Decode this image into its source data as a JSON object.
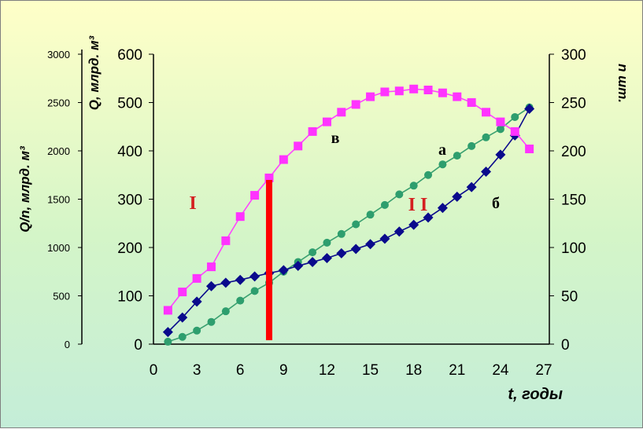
{
  "chart_data": {
    "type": "line",
    "xlabel": "t, годы",
    "x_ticks": [
      "0",
      "3",
      "6",
      "9",
      "12",
      "15",
      "18",
      "21",
      "24",
      "27"
    ],
    "xlim": [
      0,
      27
    ],
    "axes": {
      "q_per_n": {
        "label": "Q/n, млрд. м³",
        "range": [
          0,
          3000
        ],
        "ticks": [
          "0",
          "500",
          "1000",
          "1500",
          "2000",
          "2500",
          "3000"
        ]
      },
      "q": {
        "label": "Q, млрд. м³",
        "range": [
          0,
          600
        ],
        "ticks": [
          "0",
          "100",
          "200",
          "300",
          "400",
          "500",
          "600"
        ]
      },
      "n": {
        "label": "n шт.",
        "range": [
          0,
          300
        ],
        "ticks": [
          "0",
          "50",
          "100",
          "150",
          "200",
          "250",
          "300"
        ]
      }
    },
    "x": [
      1,
      2,
      3,
      4,
      5,
      6,
      7,
      8,
      9,
      10,
      11,
      12,
      13,
      14,
      15,
      16,
      17,
      18,
      19,
      20,
      21,
      22,
      23,
      24,
      25,
      26
    ],
    "series": [
      {
        "name": "а",
        "axis": "q",
        "marker": "circle",
        "color": "#2e9e6e",
        "line_color": "#3aa070",
        "values": [
          5,
          15,
          28,
          46,
          68,
          90,
          110,
          127,
          150,
          170,
          190,
          210,
          228,
          248,
          268,
          288,
          310,
          328,
          350,
          372,
          390,
          410,
          428,
          445,
          470,
          490
        ]
      },
      {
        "name": "б",
        "axis": "q",
        "marker": "diamond",
        "color": "#0a0a8c",
        "line_color": "#0a0a8c",
        "values": [
          25,
          55,
          88,
          120,
          127,
          133,
          140,
          147,
          153,
          162,
          170,
          178,
          188,
          197,
          207,
          218,
          233,
          247,
          262,
          282,
          305,
          325,
          357,
          392,
          432,
          487
        ]
      },
      {
        "name": "в",
        "axis": "q_per_n",
        "marker": "square",
        "color": "#ff33ff",
        "line_color": "#ff44ff",
        "values": [
          350,
          540,
          680,
          800,
          1070,
          1320,
          1540,
          1720,
          1910,
          2050,
          2200,
          2300,
          2400,
          2480,
          2560,
          2610,
          2620,
          2640,
          2630,
          2600,
          2560,
          2500,
          2400,
          2300,
          2200,
          2020
        ]
      }
    ],
    "annotations": [
      {
        "text": "I",
        "color": "#d42020"
      },
      {
        "text": "I I",
        "color": "#d42020"
      },
      {
        "text": "а",
        "color": "#000000"
      },
      {
        "text": "б",
        "color": "#000000"
      },
      {
        "text": "в",
        "color": "#000000"
      }
    ],
    "divider": {
      "x": 8,
      "color": "#ff0000"
    },
    "grid": false,
    "legend": "none"
  }
}
